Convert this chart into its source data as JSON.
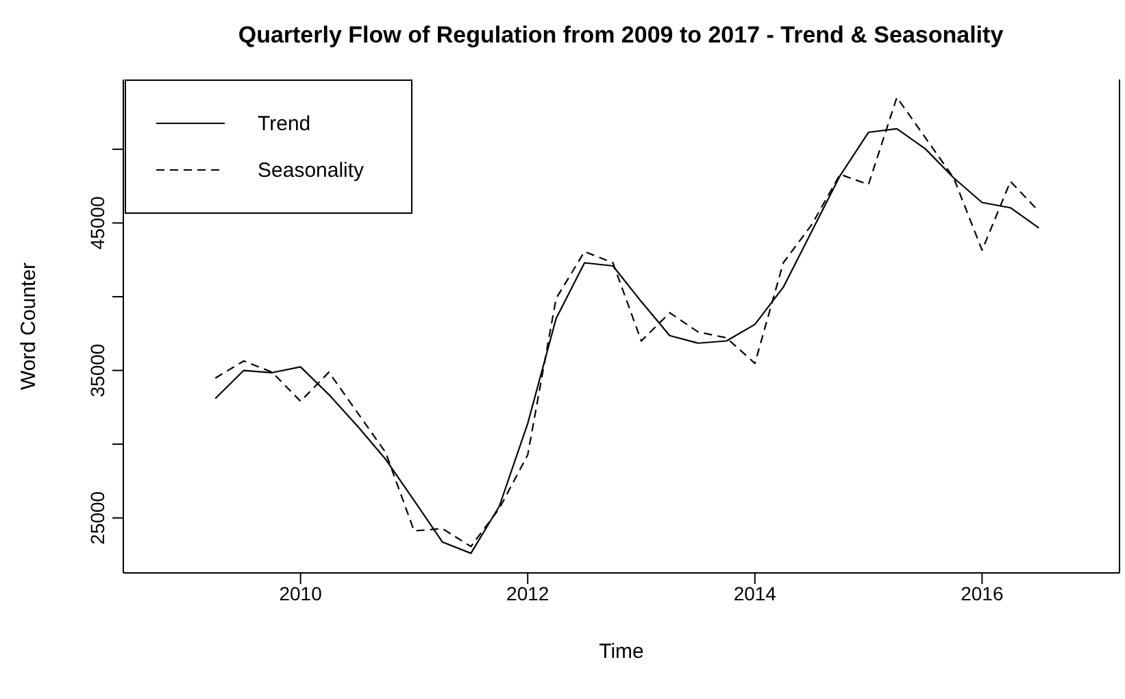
{
  "chart_data": {
    "type": "line",
    "title": "Quarterly Flow of Regulation from 2009 to 2017 - Trend & Seasonality",
    "xlabel": "Time",
    "ylabel": "Word Counter",
    "x": [
      2009.25,
      2009.5,
      2009.75,
      2010,
      2010.25,
      2010.5,
      2010.75,
      2011,
      2011.25,
      2011.5,
      2011.75,
      2012,
      2012.25,
      2012.5,
      2012.75,
      2013,
      2013.25,
      2013.5,
      2013.75,
      2014,
      2014.25,
      2014.5,
      2014.75,
      2015,
      2015.25,
      2015.5,
      2015.75,
      2016,
      2016.25,
      2016.5
    ],
    "series": [
      {
        "name": "Trend",
        "color": "#000000",
        "line_style": "solid",
        "values": [
          33100,
          35000,
          34850,
          35240,
          33360,
          31240,
          28970,
          26180,
          23360,
          22600,
          25790,
          31400,
          38520,
          42300,
          42090,
          39670,
          37360,
          36850,
          37000,
          38120,
          40640,
          44430,
          48210,
          51150,
          51390,
          50030,
          48060,
          46390,
          46030,
          44660
        ]
      },
      {
        "name": "Seasonality",
        "color": "#000000",
        "line_style": "dashed",
        "values": [
          34480,
          35640,
          34880,
          32910,
          34880,
          32150,
          29430,
          24120,
          24270,
          23060,
          25640,
          29270,
          39880,
          43060,
          42300,
          37000,
          38910,
          37610,
          37210,
          35480,
          42300,
          44880,
          48300,
          47610,
          53520,
          50790,
          48060,
          43150,
          47820,
          45790
        ]
      }
    ],
    "xlim": [
      2008.44,
      2017.21
    ],
    "ylim": [
      21270,
      54730
    ],
    "xticks": [
      2010,
      2012,
      2014,
      2016
    ],
    "yticks": [
      25000,
      {
        "value": 30000,
        "label": null
      },
      35000,
      {
        "value": 40000,
        "label": null
      },
      45000,
      {
        "value": 50000,
        "label": null
      }
    ],
    "grid": false,
    "legend": "top left"
  }
}
